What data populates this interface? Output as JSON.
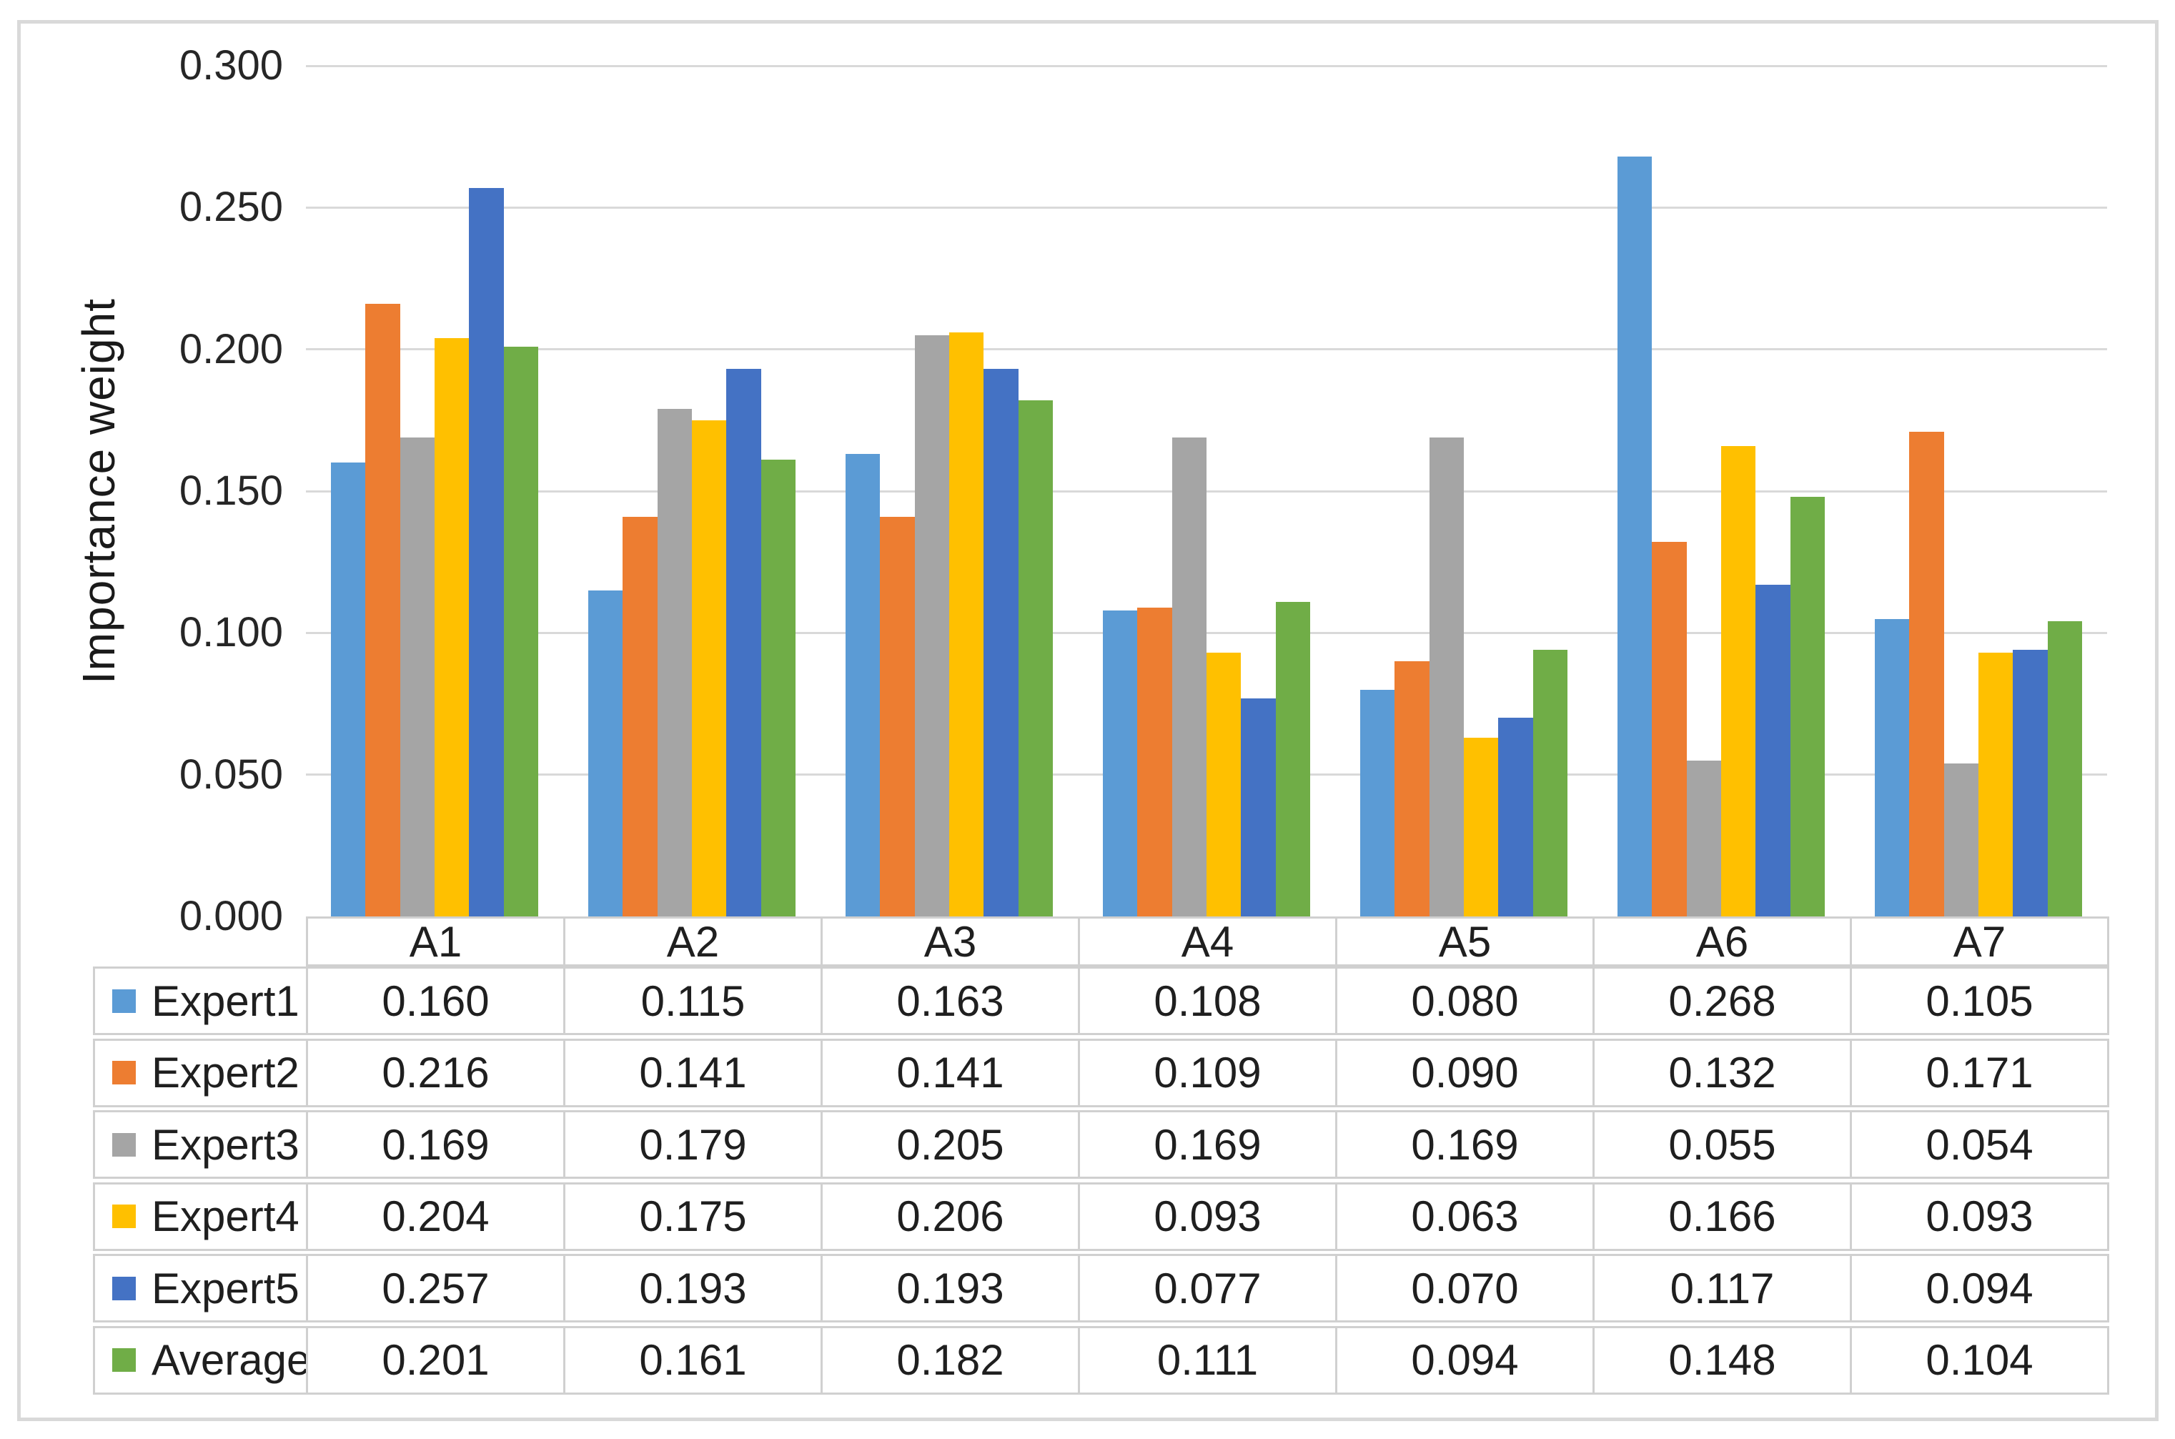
{
  "chart_data": {
    "type": "bar",
    "title": "",
    "xlabel": "",
    "ylabel": "Importance weight",
    "categories": [
      "A1",
      "A2",
      "A3",
      "A4",
      "A5",
      "A6",
      "A7"
    ],
    "series": [
      {
        "name": "Expert1",
        "color": "#5B9BD5",
        "values": [
          0.16,
          0.115,
          0.163,
          0.108,
          0.08,
          0.268,
          0.105
        ]
      },
      {
        "name": "Expert2",
        "color": "#ED7D31",
        "values": [
          0.216,
          0.141,
          0.141,
          0.109,
          0.09,
          0.132,
          0.171
        ]
      },
      {
        "name": "Expert3",
        "color": "#A5A5A5",
        "values": [
          0.169,
          0.179,
          0.205,
          0.169,
          0.169,
          0.055,
          0.054
        ]
      },
      {
        "name": "Expert4",
        "color": "#FFC000",
        "values": [
          0.204,
          0.175,
          0.206,
          0.093,
          0.063,
          0.166,
          0.093
        ]
      },
      {
        "name": "Expert5",
        "color": "#4472C4",
        "values": [
          0.257,
          0.193,
          0.193,
          0.077,
          0.07,
          0.117,
          0.094
        ]
      },
      {
        "name": "Average",
        "color": "#70AD47",
        "values": [
          0.201,
          0.161,
          0.182,
          0.111,
          0.094,
          0.148,
          0.104
        ]
      }
    ],
    "ylim": [
      0.0,
      0.3
    ],
    "y_ticks": [
      0.0,
      0.05,
      0.1,
      0.15,
      0.2,
      0.25,
      0.3
    ],
    "tick_decimals": 3,
    "value_decimals": 3,
    "grid": true,
    "legend_position": "data-table-left",
    "data_table": true,
    "colors": {
      "gridline": "#d9d9d9",
      "table_border": "#d0d0d0",
      "frame_border": "#d9d9d9",
      "text": "#262626"
    }
  }
}
